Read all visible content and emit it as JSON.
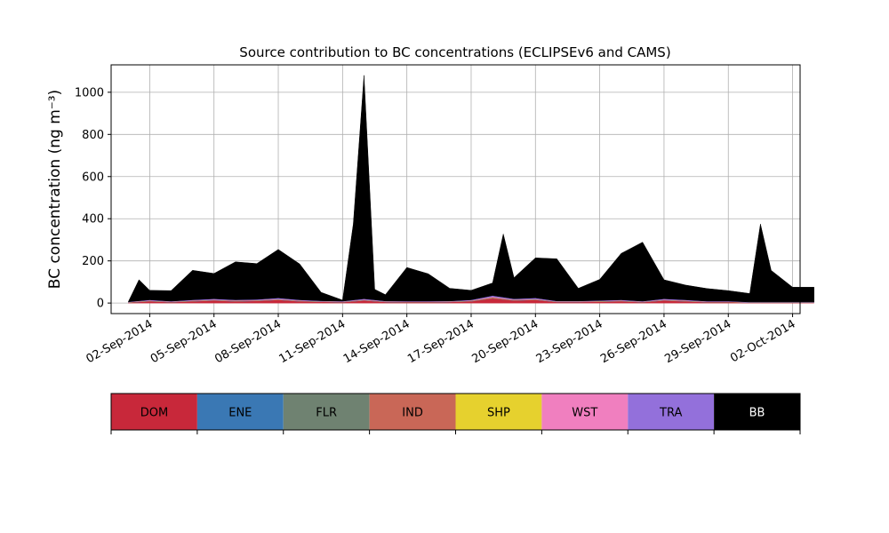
{
  "chart_data": {
    "type": "area",
    "stacked": true,
    "title": "Source contribution to BC concentrations (ECLIPSEv6 and CAMS)",
    "ylabel": "BC concentration (ng m⁻³)",
    "xlabel": "",
    "ylim": [
      -50,
      1130
    ],
    "xlim": [
      "2014-08-30",
      "2014-10-03"
    ],
    "grid": true,
    "yticks": [
      0,
      200,
      400,
      600,
      800,
      1000
    ],
    "xticks": [
      "2014-09-02",
      "2014-09-05",
      "2014-09-08",
      "2014-09-11",
      "2014-09-14",
      "2014-09-17",
      "2014-09-20",
      "2014-09-23",
      "2014-09-26",
      "2014-09-29",
      "2014-10-02"
    ],
    "xtick_labels": [
      "02-Sep-2014",
      "05-Sep-2014",
      "08-Sep-2014",
      "11-Sep-2014",
      "14-Sep-2014",
      "17-Sep-2014",
      "20-Sep-2014",
      "23-Sep-2014",
      "26-Sep-2014",
      "29-Sep-2014",
      "02-Oct-2014"
    ],
    "series": [
      {
        "name": "DOM",
        "color": "#c8283a",
        "points": [
          [
            "2014-09-01",
            2
          ],
          [
            "2014-09-02",
            8
          ],
          [
            "2014-09-03",
            4
          ],
          [
            "2014-09-04",
            8
          ],
          [
            "2014-09-05",
            12
          ],
          [
            "2014-09-06",
            8
          ],
          [
            "2014-09-07",
            10
          ],
          [
            "2014-09-08",
            15
          ],
          [
            "2014-09-09",
            8
          ],
          [
            "2014-09-10",
            6
          ],
          [
            "2014-09-11",
            4
          ],
          [
            "2014-09-12",
            12
          ],
          [
            "2014-09-13",
            5
          ],
          [
            "2014-09-14",
            4
          ],
          [
            "2014-09-15",
            4
          ],
          [
            "2014-09-16",
            5
          ],
          [
            "2014-09-17",
            8
          ],
          [
            "2014-09-18",
            22
          ],
          [
            "2014-09-19",
            12
          ],
          [
            "2014-09-20",
            15
          ],
          [
            "2014-09-21",
            5
          ],
          [
            "2014-09-22",
            5
          ],
          [
            "2014-09-23",
            6
          ],
          [
            "2014-09-24",
            8
          ],
          [
            "2014-09-25",
            4
          ],
          [
            "2014-09-26",
            12
          ],
          [
            "2014-09-27",
            8
          ],
          [
            "2014-09-28",
            4
          ],
          [
            "2014-09-29",
            4
          ],
          [
            "2014-09-30",
            2
          ],
          [
            "2014-10-01",
            2
          ],
          [
            "2014-10-02",
            2
          ],
          [
            "2014-10-03",
            2
          ]
        ]
      },
      {
        "name": "ENE",
        "color": "#3a78b4",
        "points": [
          [
            "2014-09-01",
            0.5
          ],
          [
            "2014-09-02",
            0.5
          ],
          [
            "2014-09-03",
            0.5
          ],
          [
            "2014-09-04",
            0.5
          ],
          [
            "2014-09-05",
            0.5
          ],
          [
            "2014-09-06",
            0.5
          ],
          [
            "2014-09-07",
            0.5
          ],
          [
            "2014-09-08",
            0.5
          ],
          [
            "2014-09-09",
            0.5
          ],
          [
            "2014-09-10",
            0.5
          ],
          [
            "2014-09-11",
            0.5
          ],
          [
            "2014-09-12",
            0.5
          ],
          [
            "2014-09-13",
            0.5
          ],
          [
            "2014-09-14",
            0.5
          ],
          [
            "2014-09-15",
            0.5
          ],
          [
            "2014-09-16",
            0.5
          ],
          [
            "2014-09-17",
            0.5
          ],
          [
            "2014-09-18",
            0.5
          ],
          [
            "2014-09-19",
            0.5
          ],
          [
            "2014-09-20",
            0.5
          ],
          [
            "2014-09-21",
            0.5
          ],
          [
            "2014-09-22",
            0.5
          ],
          [
            "2014-09-23",
            0.5
          ],
          [
            "2014-09-24",
            0.5
          ],
          [
            "2014-09-25",
            0.5
          ],
          [
            "2014-09-26",
            0.5
          ],
          [
            "2014-09-27",
            0.5
          ],
          [
            "2014-09-28",
            0.5
          ],
          [
            "2014-09-29",
            0.5
          ],
          [
            "2014-09-30",
            0.5
          ],
          [
            "2014-10-01",
            0.5
          ],
          [
            "2014-10-02",
            0.5
          ],
          [
            "2014-10-03",
            0.5
          ]
        ]
      },
      {
        "name": "FLR",
        "color": "#6f8271",
        "points": [
          [
            "2014-09-01",
            0.5
          ],
          [
            "2014-09-02",
            0.5
          ],
          [
            "2014-09-03",
            0.5
          ],
          [
            "2014-09-04",
            0.5
          ],
          [
            "2014-09-05",
            0.5
          ],
          [
            "2014-09-06",
            0.5
          ],
          [
            "2014-09-07",
            0.5
          ],
          [
            "2014-09-08",
            0.5
          ],
          [
            "2014-09-09",
            0.5
          ],
          [
            "2014-09-10",
            0.5
          ],
          [
            "2014-09-11",
            0.5
          ],
          [
            "2014-09-12",
            0.5
          ],
          [
            "2014-09-13",
            0.5
          ],
          [
            "2014-09-14",
            0.5
          ],
          [
            "2014-09-15",
            0.5
          ],
          [
            "2014-09-16",
            0.5
          ],
          [
            "2014-09-17",
            0.5
          ],
          [
            "2014-09-18",
            0.5
          ],
          [
            "2014-09-19",
            0.5
          ],
          [
            "2014-09-20",
            0.5
          ],
          [
            "2014-09-21",
            0.5
          ],
          [
            "2014-09-22",
            0.5
          ],
          [
            "2014-09-23",
            0.5
          ],
          [
            "2014-09-24",
            0.5
          ],
          [
            "2014-09-25",
            0.5
          ],
          [
            "2014-09-26",
            0.5
          ],
          [
            "2014-09-27",
            0.5
          ],
          [
            "2014-09-28",
            0.5
          ],
          [
            "2014-09-29",
            0.5
          ],
          [
            "2014-09-30",
            0.5
          ],
          [
            "2014-10-01",
            0.5
          ],
          [
            "2014-10-02",
            0.5
          ],
          [
            "2014-10-03",
            0.5
          ]
        ]
      },
      {
        "name": "IND",
        "color": "#c96757",
        "points": [
          [
            "2014-09-01",
            1
          ],
          [
            "2014-09-02",
            2
          ],
          [
            "2014-09-03",
            1
          ],
          [
            "2014-09-04",
            2
          ],
          [
            "2014-09-05",
            2
          ],
          [
            "2014-09-06",
            2
          ],
          [
            "2014-09-07",
            2
          ],
          [
            "2014-09-08",
            2
          ],
          [
            "2014-09-09",
            2
          ],
          [
            "2014-09-10",
            1
          ],
          [
            "2014-09-11",
            1
          ],
          [
            "2014-09-12",
            2
          ],
          [
            "2014-09-13",
            1
          ],
          [
            "2014-09-14",
            1
          ],
          [
            "2014-09-15",
            1
          ],
          [
            "2014-09-16",
            1
          ],
          [
            "2014-09-17",
            2
          ],
          [
            "2014-09-18",
            4
          ],
          [
            "2014-09-19",
            2
          ],
          [
            "2014-09-20",
            2
          ],
          [
            "2014-09-21",
            1
          ],
          [
            "2014-09-22",
            1
          ],
          [
            "2014-09-23",
            2
          ],
          [
            "2014-09-24",
            2
          ],
          [
            "2014-09-25",
            1
          ],
          [
            "2014-09-26",
            2
          ],
          [
            "2014-09-27",
            2
          ],
          [
            "2014-09-28",
            1
          ],
          [
            "2014-09-29",
            1
          ],
          [
            "2014-09-30",
            0.5
          ],
          [
            "2014-10-01",
            0.5
          ],
          [
            "2014-10-02",
            0.5
          ],
          [
            "2014-10-03",
            0.5
          ]
        ]
      },
      {
        "name": "SHP",
        "color": "#e6d12e",
        "points": [
          [
            "2014-09-01",
            0.3
          ],
          [
            "2014-09-02",
            0.3
          ],
          [
            "2014-09-03",
            0.3
          ],
          [
            "2014-09-04",
            0.3
          ],
          [
            "2014-09-05",
            0.3
          ],
          [
            "2014-09-06",
            0.3
          ],
          [
            "2014-09-07",
            0.3
          ],
          [
            "2014-09-08",
            0.3
          ],
          [
            "2014-09-09",
            0.3
          ],
          [
            "2014-09-10",
            0.3
          ],
          [
            "2014-09-11",
            0.3
          ],
          [
            "2014-09-12",
            0.3
          ],
          [
            "2014-09-13",
            0.3
          ],
          [
            "2014-09-14",
            0.3
          ],
          [
            "2014-09-15",
            0.3
          ],
          [
            "2014-09-16",
            0.3
          ],
          [
            "2014-09-17",
            0.3
          ],
          [
            "2014-09-18",
            0.3
          ],
          [
            "2014-09-19",
            0.3
          ],
          [
            "2014-09-20",
            0.3
          ],
          [
            "2014-09-21",
            0.3
          ],
          [
            "2014-09-22",
            0.3
          ],
          [
            "2014-09-23",
            0.3
          ],
          [
            "2014-09-24",
            0.3
          ],
          [
            "2014-09-25",
            0.3
          ],
          [
            "2014-09-26",
            0.3
          ],
          [
            "2014-09-27",
            0.3
          ],
          [
            "2014-09-28",
            0.3
          ],
          [
            "2014-09-29",
            0.3
          ],
          [
            "2014-09-30",
            0.3
          ],
          [
            "2014-10-01",
            0.3
          ],
          [
            "2014-10-02",
            0.3
          ],
          [
            "2014-10-03",
            0.3
          ]
        ]
      },
      {
        "name": "WST",
        "color": "#f07fbf",
        "points": [
          [
            "2014-09-01",
            0.5
          ],
          [
            "2014-09-02",
            1
          ],
          [
            "2014-09-03",
            0.5
          ],
          [
            "2014-09-04",
            1
          ],
          [
            "2014-09-05",
            1
          ],
          [
            "2014-09-06",
            1
          ],
          [
            "2014-09-07",
            1
          ],
          [
            "2014-09-08",
            1
          ],
          [
            "2014-09-09",
            1
          ],
          [
            "2014-09-10",
            0.5
          ],
          [
            "2014-09-11",
            0.5
          ],
          [
            "2014-09-12",
            1
          ],
          [
            "2014-09-13",
            0.5
          ],
          [
            "2014-09-14",
            0.5
          ],
          [
            "2014-09-15",
            0.5
          ],
          [
            "2014-09-16",
            0.5
          ],
          [
            "2014-09-17",
            1
          ],
          [
            "2014-09-18",
            2
          ],
          [
            "2014-09-19",
            1
          ],
          [
            "2014-09-20",
            1
          ],
          [
            "2014-09-21",
            0.5
          ],
          [
            "2014-09-22",
            0.5
          ],
          [
            "2014-09-23",
            1
          ],
          [
            "2014-09-24",
            1
          ],
          [
            "2014-09-25",
            0.5
          ],
          [
            "2014-09-26",
            1
          ],
          [
            "2014-09-27",
            1
          ],
          [
            "2014-09-28",
            0.5
          ],
          [
            "2014-09-29",
            0.5
          ],
          [
            "2014-09-30",
            0.3
          ],
          [
            "2014-10-01",
            0.3
          ],
          [
            "2014-10-02",
            0.3
          ],
          [
            "2014-10-03",
            0.3
          ]
        ]
      },
      {
        "name": "TRA",
        "color": "#9370db",
        "points": [
          [
            "2014-09-01",
            1
          ],
          [
            "2014-09-02",
            3
          ],
          [
            "2014-09-03",
            2
          ],
          [
            "2014-09-04",
            3
          ],
          [
            "2014-09-05",
            4
          ],
          [
            "2014-09-06",
            3
          ],
          [
            "2014-09-07",
            3
          ],
          [
            "2014-09-08",
            5
          ],
          [
            "2014-09-09",
            3
          ],
          [
            "2014-09-10",
            2
          ],
          [
            "2014-09-11",
            2
          ],
          [
            "2014-09-12",
            4
          ],
          [
            "2014-09-13",
            2
          ],
          [
            "2014-09-14",
            2
          ],
          [
            "2014-09-15",
            2
          ],
          [
            "2014-09-16",
            2
          ],
          [
            "2014-09-17",
            3
          ],
          [
            "2014-09-18",
            6
          ],
          [
            "2014-09-19",
            4
          ],
          [
            "2014-09-20",
            5
          ],
          [
            "2014-09-21",
            2
          ],
          [
            "2014-09-22",
            2
          ],
          [
            "2014-09-23",
            2
          ],
          [
            "2014-09-24",
            3
          ],
          [
            "2014-09-25",
            2
          ],
          [
            "2014-09-26",
            4
          ],
          [
            "2014-09-27",
            3
          ],
          [
            "2014-09-28",
            2
          ],
          [
            "2014-09-29",
            2
          ],
          [
            "2014-09-30",
            1
          ],
          [
            "2014-10-01",
            1
          ],
          [
            "2014-10-02",
            1
          ],
          [
            "2014-10-03",
            1
          ]
        ]
      },
      {
        "name": "BB",
        "color": "#000000",
        "points": [
          [
            "2014-09-01",
            0
          ],
          [
            "2014-09-01T12",
            100
          ],
          [
            "2014-09-02",
            45
          ],
          [
            "2014-09-03",
            50
          ],
          [
            "2014-09-04",
            140
          ],
          [
            "2014-09-05",
            120
          ],
          [
            "2014-09-06",
            180
          ],
          [
            "2014-09-07",
            170
          ],
          [
            "2014-09-08",
            230
          ],
          [
            "2014-09-09",
            170
          ],
          [
            "2014-09-10",
            40
          ],
          [
            "2014-09-11",
            5
          ],
          [
            "2014-09-11T12",
            360
          ],
          [
            "2014-09-12",
            1060
          ],
          [
            "2014-09-12T12",
            50
          ],
          [
            "2014-09-13",
            30
          ],
          [
            "2014-09-14",
            160
          ],
          [
            "2014-09-15",
            130
          ],
          [
            "2014-09-16",
            60
          ],
          [
            "2014-09-17",
            45
          ],
          [
            "2014-09-18",
            60
          ],
          [
            "2014-09-18T12",
            300
          ],
          [
            "2014-09-19",
            100
          ],
          [
            "2014-09-20",
            190
          ],
          [
            "2014-09-21",
            200
          ],
          [
            "2014-09-22",
            60
          ],
          [
            "2014-09-23",
            100
          ],
          [
            "2014-09-24",
            220
          ],
          [
            "2014-09-25",
            280
          ],
          [
            "2014-09-26",
            90
          ],
          [
            "2014-09-27",
            70
          ],
          [
            "2014-09-28",
            60
          ],
          [
            "2014-09-29",
            50
          ],
          [
            "2014-09-30",
            40
          ],
          [
            "2014-09-30T12",
            370
          ],
          [
            "2014-10-01",
            150
          ],
          [
            "2014-10-02",
            70
          ]
        ]
      }
    ]
  },
  "legend_bar": {
    "labels": [
      "DOM",
      "ENE",
      "FLR",
      "IND",
      "SHP",
      "WST",
      "TRA",
      "BB"
    ],
    "colors": [
      "#c8283a",
      "#3a78b4",
      "#6f8271",
      "#c96757",
      "#e6d12e",
      "#f07fbf",
      "#9370db",
      "#000000"
    ],
    "text_colors": [
      "#000000",
      "#000000",
      "#000000",
      "#000000",
      "#000000",
      "#000000",
      "#000000",
      "#ffffff"
    ]
  }
}
